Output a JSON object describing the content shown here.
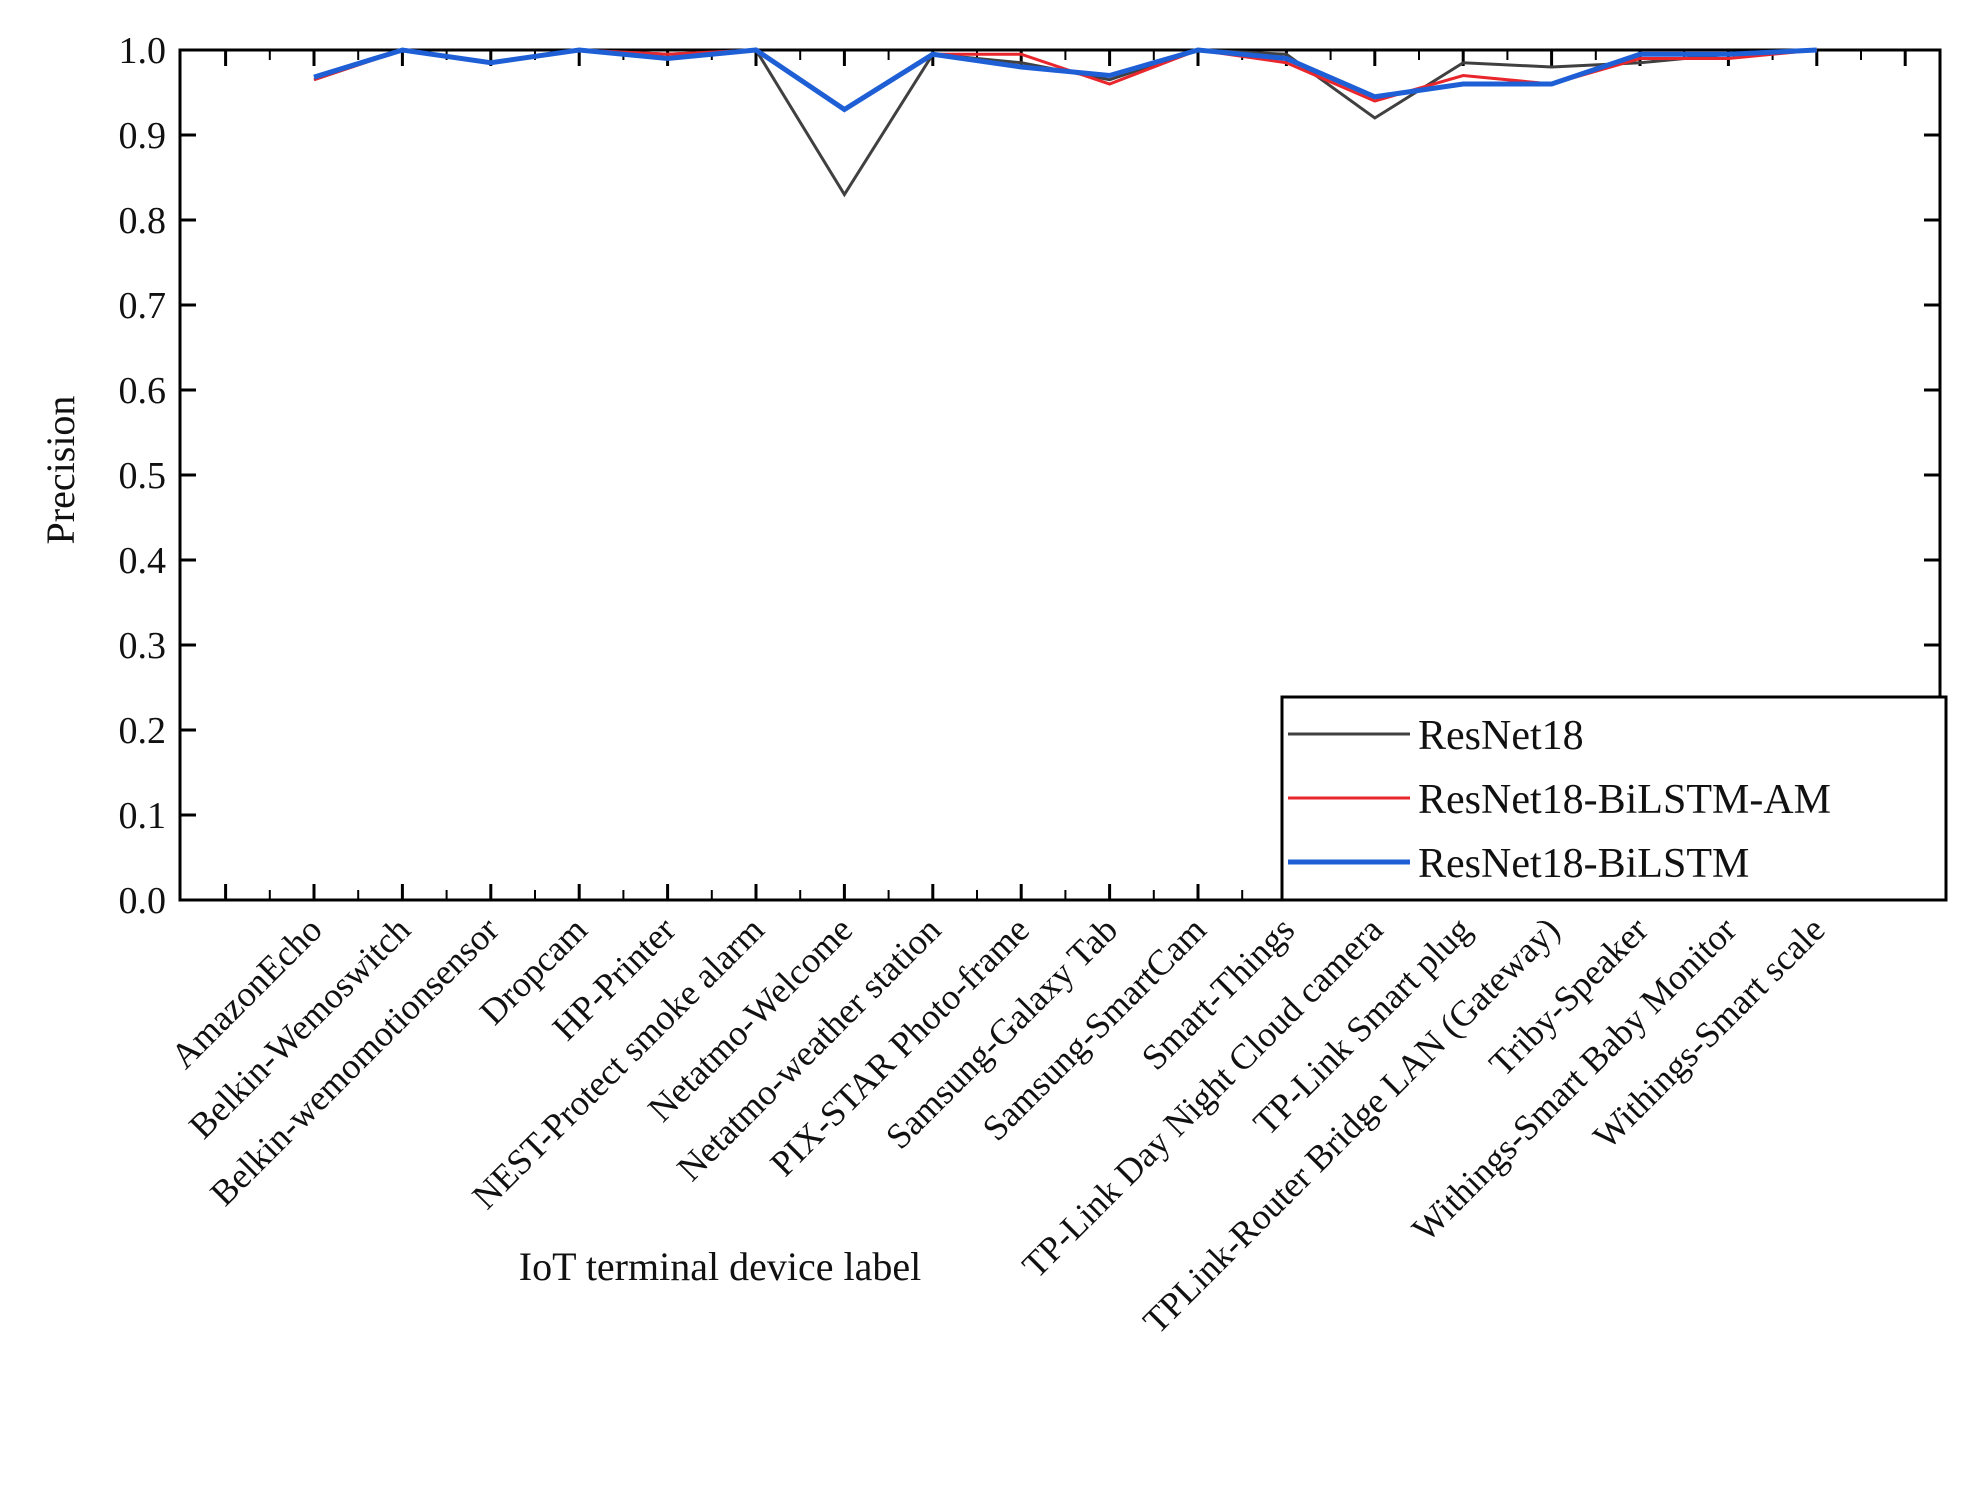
{
  "chart_data": {
    "type": "line",
    "title": "",
    "xlabel": "IoT terminal device label",
    "ylabel": "Precision",
    "ylim": [
      0.0,
      1.0
    ],
    "yticks": [
      "0.0",
      "0.1",
      "0.2",
      "0.3",
      "0.4",
      "0.5",
      "0.6",
      "0.7",
      "0.8",
      "0.9",
      "1.0"
    ],
    "grid": false,
    "legend_position": "bottom-right",
    "categories": [
      "AmazonEcho",
      "Belkin-Wemoswitch",
      "Belkin-wemomotionsensor",
      "Dropcam",
      "HP-Printer",
      "NEST-Protect smoke alarm",
      "Netatmo-Welcome",
      "Netatmo-weather station",
      "PIX-STAR Photo-frame",
      "Samsung-Galaxy Tab",
      "Samsung-SmartCam",
      "Smart-Things",
      "TP-Link Day Night Cloud camera",
      "TP-Link Smart plug",
      "TPLink-Router Bridge LAN (Gateway)",
      "Triby-Speaker",
      "Withings-Smart Baby Monitor",
      "Withings-Smart scale"
    ],
    "series": [
      {
        "name": "ResNet18",
        "color": "#404040",
        "values": [
          0.965,
          1.0,
          0.985,
          1.0,
          0.995,
          1.0,
          0.83,
          0.995,
          0.985,
          0.965,
          1.0,
          0.995,
          0.92,
          0.985,
          0.98,
          0.985,
          0.995,
          1.0
        ]
      },
      {
        "name": "ResNet18-BiLSTM-AM",
        "color": "#e8262c",
        "values": [
          0.965,
          1.0,
          0.985,
          1.0,
          0.995,
          1.0,
          0.93,
          0.995,
          0.995,
          0.96,
          1.0,
          0.985,
          0.94,
          0.97,
          0.96,
          0.99,
          0.99,
          1.0
        ]
      },
      {
        "name": "ResNet18-BiLSTM",
        "color": "#1f5fd6",
        "values": [
          0.968,
          1.0,
          0.985,
          1.0,
          0.99,
          1.0,
          0.93,
          0.995,
          0.98,
          0.97,
          1.0,
          0.99,
          0.945,
          0.96,
          0.96,
          0.995,
          0.995,
          1.0
        ]
      }
    ]
  }
}
